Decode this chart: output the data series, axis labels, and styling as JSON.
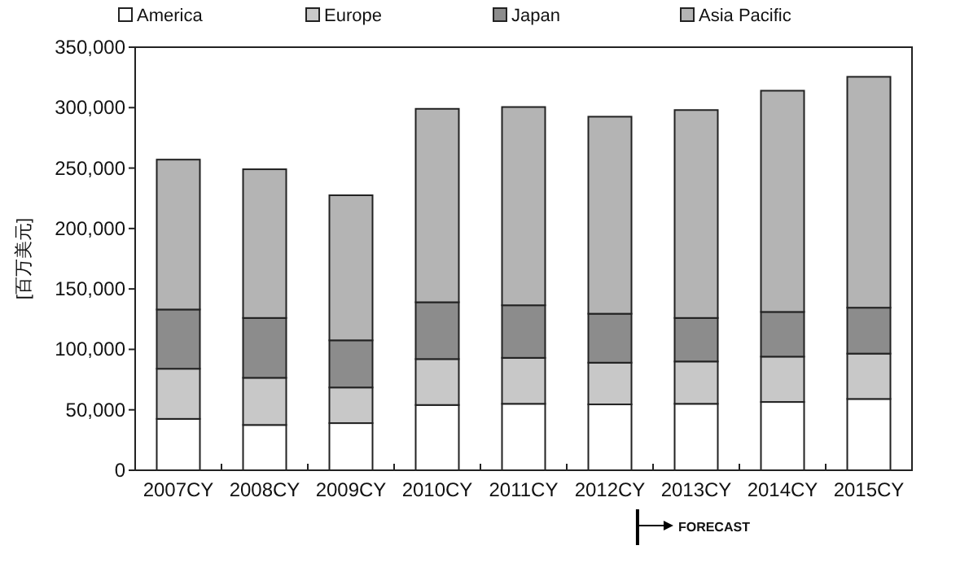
{
  "chart_data": {
    "type": "bar",
    "stacked": true,
    "ylabel": "[百万美元]",
    "categories": [
      "2007CY",
      "2008CY",
      "2009CY",
      "2010CY",
      "2011CY",
      "2012CY",
      "2013CY",
      "2014CY",
      "2015CY"
    ],
    "series": [
      {
        "name": "America",
        "color": "#ffffff",
        "values": [
          42500,
          37500,
          39000,
          54000,
          55000,
          54500,
          55000,
          56500,
          59000
        ]
      },
      {
        "name": "Europe",
        "color": "#c8c8c8",
        "values": [
          41500,
          39000,
          29500,
          38000,
          38000,
          34500,
          35000,
          37500,
          37500
        ]
      },
      {
        "name": "Japan",
        "color": "#8c8c8c",
        "values": [
          49000,
          49500,
          39000,
          47000,
          43500,
          40500,
          36000,
          37000,
          38000
        ]
      },
      {
        "name": "Asia Pacific",
        "color": "#b4b4b4",
        "values": [
          124000,
          123000,
          120000,
          160000,
          164000,
          163000,
          172000,
          183000,
          191000
        ]
      }
    ],
    "ylim": [
      0,
      350000
    ],
    "yticks": [
      {
        "value": 0,
        "label": "0"
      },
      {
        "value": 50000,
        "label": "50,000"
      },
      {
        "value": 100000,
        "label": "100,000"
      },
      {
        "value": 150000,
        "label": "150,000"
      },
      {
        "value": 200000,
        "label": "200,000"
      },
      {
        "value": 250000,
        "label": "250,000"
      },
      {
        "value": 300000,
        "label": "300,000"
      },
      {
        "value": 350000,
        "label": "350,000"
      }
    ],
    "grid": false,
    "legend": "top",
    "annotations": [
      "FORECAST"
    ]
  }
}
